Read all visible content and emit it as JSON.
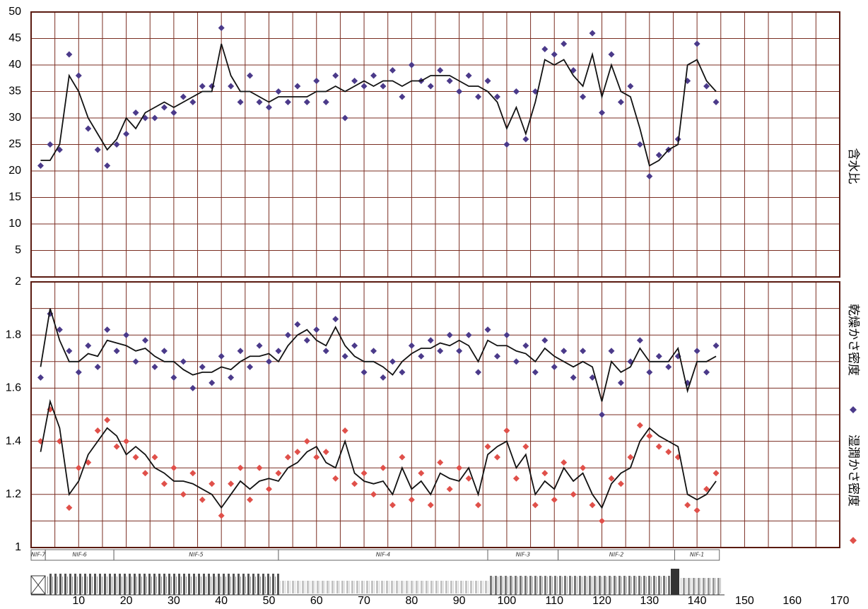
{
  "chart_data": [
    {
      "type": "scatter",
      "ylabel": "含水比",
      "xlim": [
        0,
        170
      ],
      "ylim": [
        0,
        50
      ],
      "yticks": [
        5,
        10,
        15,
        20,
        25,
        30,
        35,
        40,
        45,
        50
      ],
      "xgrid": [
        5,
        10,
        15,
        20,
        25,
        30,
        35,
        40,
        45,
        50,
        55,
        60,
        65,
        70,
        75,
        80,
        85,
        90,
        95,
        100,
        105,
        110,
        115,
        120,
        125,
        130,
        135,
        140,
        145,
        150,
        155,
        160,
        165
      ],
      "x": [
        2,
        4,
        6,
        8,
        10,
        12,
        14,
        16,
        18,
        20,
        22,
        24,
        26,
        28,
        30,
        32,
        34,
        36,
        38,
        40,
        42,
        44,
        46,
        48,
        50,
        52,
        54,
        56,
        58,
        60,
        62,
        64,
        66,
        68,
        70,
        72,
        74,
        76,
        78,
        80,
        82,
        84,
        86,
        88,
        90,
        92,
        94,
        96,
        98,
        100,
        102,
        104,
        106,
        108,
        110,
        112,
        114,
        116,
        118,
        120,
        122,
        124,
        126,
        128,
        130,
        132,
        134,
        136,
        138,
        140,
        142,
        144
      ],
      "series": [
        {
          "style": "markers",
          "color": "#4b3a8a",
          "values": [
            21,
            25,
            24,
            42,
            38,
            28,
            24,
            21,
            25,
            27,
            31,
            30,
            30,
            32,
            31,
            34,
            33,
            36,
            36,
            47,
            36,
            33,
            38,
            33,
            32,
            35,
            33,
            36,
            33,
            37,
            33,
            38,
            30,
            37,
            36,
            38,
            36,
            39,
            34,
            40,
            37,
            36,
            39,
            37,
            35,
            38,
            34,
            37,
            34,
            25,
            35,
            26,
            35,
            43,
            42,
            44,
            39,
            34,
            46,
            31,
            42,
            33,
            36,
            25,
            19,
            23,
            24,
            26,
            37,
            44,
            36,
            33
          ]
        },
        {
          "style": "line",
          "color": "#111111",
          "values": [
            22,
            22,
            25,
            38,
            35,
            30,
            27,
            24,
            26,
            30,
            28,
            31,
            32,
            33,
            32,
            33,
            34,
            35,
            35,
            44,
            38,
            35,
            35,
            34,
            33,
            34,
            34,
            34,
            34,
            35,
            35,
            36,
            35,
            36,
            37,
            36,
            37,
            37,
            36,
            37,
            37,
            38,
            38,
            38,
            37,
            36,
            36,
            35,
            33,
            28,
            32,
            27,
            33,
            41,
            40,
            41,
            38,
            36,
            42,
            34,
            40,
            35,
            34,
            28,
            21,
            22,
            24,
            25,
            40,
            41,
            37,
            35
          ]
        }
      ]
    },
    {
      "type": "scatter",
      "xlim": [
        0,
        170
      ],
      "ylim": [
        1,
        2
      ],
      "yticks": [
        1,
        1.2,
        1.4,
        1.6,
        1.8,
        2
      ],
      "yminor": [
        1.1,
        1.3,
        1.5,
        1.7,
        1.9
      ],
      "xgrid": [
        5,
        10,
        15,
        20,
        25,
        30,
        35,
        40,
        45,
        50,
        55,
        60,
        65,
        70,
        75,
        80,
        85,
        90,
        95,
        100,
        105,
        110,
        115,
        120,
        125,
        130,
        135,
        140,
        145,
        150,
        155,
        160,
        165
      ],
      "xticks": [
        10,
        20,
        30,
        40,
        50,
        60,
        70,
        80,
        90,
        100,
        110,
        120,
        130,
        140,
        150,
        160,
        170
      ],
      "x": [
        2,
        4,
        6,
        8,
        10,
        12,
        14,
        16,
        18,
        20,
        22,
        24,
        26,
        28,
        30,
        32,
        34,
        36,
        38,
        40,
        42,
        44,
        46,
        48,
        50,
        52,
        54,
        56,
        58,
        60,
        62,
        64,
        66,
        68,
        70,
        72,
        74,
        76,
        78,
        80,
        82,
        84,
        86,
        88,
        90,
        92,
        94,
        96,
        98,
        100,
        102,
        104,
        106,
        108,
        110,
        112,
        114,
        116,
        118,
        120,
        122,
        124,
        126,
        128,
        130,
        132,
        134,
        136,
        138,
        140,
        142,
        144
      ],
      "series": [
        {
          "name": "乾燥かさ密度",
          "style": "markers",
          "color": "#4b3a8a",
          "values": [
            1.64,
            1.88,
            1.82,
            1.74,
            1.66,
            1.76,
            1.68,
            1.82,
            1.74,
            1.8,
            1.7,
            1.78,
            1.68,
            1.74,
            1.64,
            1.7,
            1.6,
            1.68,
            1.62,
            1.72,
            1.64,
            1.74,
            1.68,
            1.76,
            1.7,
            1.74,
            1.8,
            1.84,
            1.78,
            1.82,
            1.74,
            1.86,
            1.72,
            1.76,
            1.66,
            1.74,
            1.64,
            1.7,
            1.66,
            1.76,
            1.72,
            1.78,
            1.74,
            1.8,
            1.74,
            1.8,
            1.66,
            1.82,
            1.72,
            1.8,
            1.7,
            1.76,
            1.66,
            1.78,
            1.68,
            1.74,
            1.64,
            1.74,
            1.64,
            1.5,
            1.74,
            1.62,
            1.7,
            1.78,
            1.66,
            1.72,
            1.68,
            1.72,
            1.62,
            1.74,
            1.66,
            1.76
          ]
        },
        {
          "style": "line",
          "color": "#111111",
          "values": [
            1.68,
            1.9,
            1.78,
            1.7,
            1.7,
            1.73,
            1.72,
            1.78,
            1.77,
            1.76,
            1.74,
            1.75,
            1.72,
            1.7,
            1.7,
            1.67,
            1.65,
            1.66,
            1.66,
            1.68,
            1.67,
            1.7,
            1.72,
            1.72,
            1.73,
            1.7,
            1.76,
            1.8,
            1.82,
            1.78,
            1.76,
            1.83,
            1.76,
            1.72,
            1.7,
            1.7,
            1.68,
            1.65,
            1.7,
            1.73,
            1.75,
            1.75,
            1.77,
            1.76,
            1.78,
            1.76,
            1.7,
            1.78,
            1.76,
            1.76,
            1.74,
            1.73,
            1.7,
            1.75,
            1.72,
            1.7,
            1.68,
            1.7,
            1.68,
            1.55,
            1.7,
            1.66,
            1.68,
            1.75,
            1.7,
            1.7,
            1.7,
            1.75,
            1.59,
            1.7,
            1.7,
            1.72
          ]
        },
        {
          "name": "湿潤かさ密度",
          "style": "markers",
          "color": "#e0504a",
          "values": [
            1.4,
            1.52,
            1.4,
            1.15,
            1.3,
            1.32,
            1.44,
            1.48,
            1.38,
            1.4,
            1.34,
            1.28,
            1.34,
            1.24,
            1.3,
            1.2,
            1.28,
            1.18,
            1.24,
            1.12,
            1.24,
            1.3,
            1.18,
            1.3,
            1.22,
            1.28,
            1.34,
            1.36,
            1.4,
            1.34,
            1.36,
            1.26,
            1.44,
            1.24,
            1.28,
            1.2,
            1.3,
            1.16,
            1.34,
            1.18,
            1.28,
            1.16,
            1.32,
            1.22,
            1.3,
            1.26,
            1.16,
            1.38,
            1.34,
            1.44,
            1.26,
            1.38,
            1.16,
            1.28,
            1.18,
            1.32,
            1.2,
            1.3,
            1.16,
            1.1,
            1.26,
            1.24,
            1.34,
            1.46,
            1.42,
            1.38,
            1.36,
            1.34,
            1.16,
            1.14,
            1.22,
            1.28
          ]
        },
        {
          "style": "line",
          "color": "#111111",
          "values": [
            1.36,
            1.55,
            1.45,
            1.2,
            1.25,
            1.35,
            1.4,
            1.45,
            1.42,
            1.35,
            1.38,
            1.35,
            1.3,
            1.28,
            1.25,
            1.25,
            1.24,
            1.22,
            1.2,
            1.15,
            1.2,
            1.25,
            1.22,
            1.25,
            1.26,
            1.25,
            1.3,
            1.32,
            1.36,
            1.38,
            1.32,
            1.3,
            1.4,
            1.28,
            1.25,
            1.24,
            1.25,
            1.2,
            1.3,
            1.22,
            1.25,
            1.2,
            1.28,
            1.26,
            1.25,
            1.3,
            1.2,
            1.35,
            1.38,
            1.4,
            1.3,
            1.35,
            1.2,
            1.25,
            1.22,
            1.3,
            1.25,
            1.28,
            1.2,
            1.15,
            1.24,
            1.28,
            1.3,
            1.4,
            1.45,
            1.42,
            1.4,
            1.38,
            1.2,
            1.18,
            1.2,
            1.25
          ]
        }
      ]
    }
  ],
  "units": [
    {
      "label": "NIF-7",
      "start": 0,
      "end": 3
    },
    {
      "label": "NIF-6",
      "start": 3,
      "end": 17.4
    },
    {
      "label": "NIF-5",
      "start": 17.4,
      "end": 52
    },
    {
      "label": "NIF-4",
      "start": 52,
      "end": 96
    },
    {
      "label": "NIF-3",
      "start": 96,
      "end": 110.8
    },
    {
      "label": "NIF-2",
      "start": 110.8,
      "end": 135.3
    },
    {
      "label": "NIF-1",
      "start": 135.3,
      "end": 144.7
    }
  ]
}
